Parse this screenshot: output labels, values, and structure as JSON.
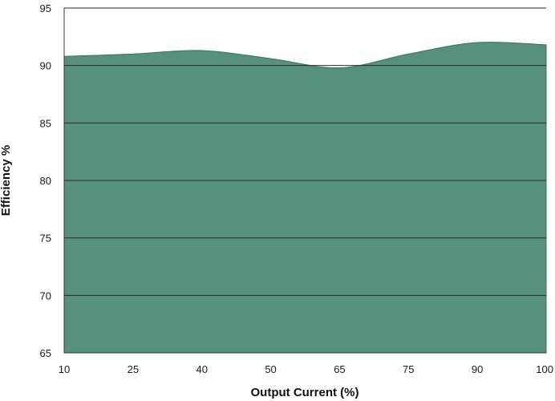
{
  "chart_data": {
    "type": "area",
    "xlabel": "Output Current (%)",
    "ylabel": "Efficiency %",
    "categories": [
      "10",
      "25",
      "40",
      "50",
      "65",
      "75",
      "90",
      "100"
    ],
    "x": [
      10,
      25,
      40,
      50,
      65,
      75,
      90,
      100
    ],
    "values": [
      90.8,
      91.0,
      91.3,
      90.6,
      89.8,
      91.0,
      92.0,
      91.8
    ],
    "ylim": [
      65,
      95
    ],
    "yticks": [
      "65",
      "70",
      "75",
      "80",
      "85",
      "90",
      "95"
    ],
    "grid": "horizontal",
    "legend": "none",
    "colors": {
      "fill": "#55917d",
      "stroke": "#3d6e5e",
      "grid": "#2b2b2b",
      "axis": "#333333"
    }
  }
}
